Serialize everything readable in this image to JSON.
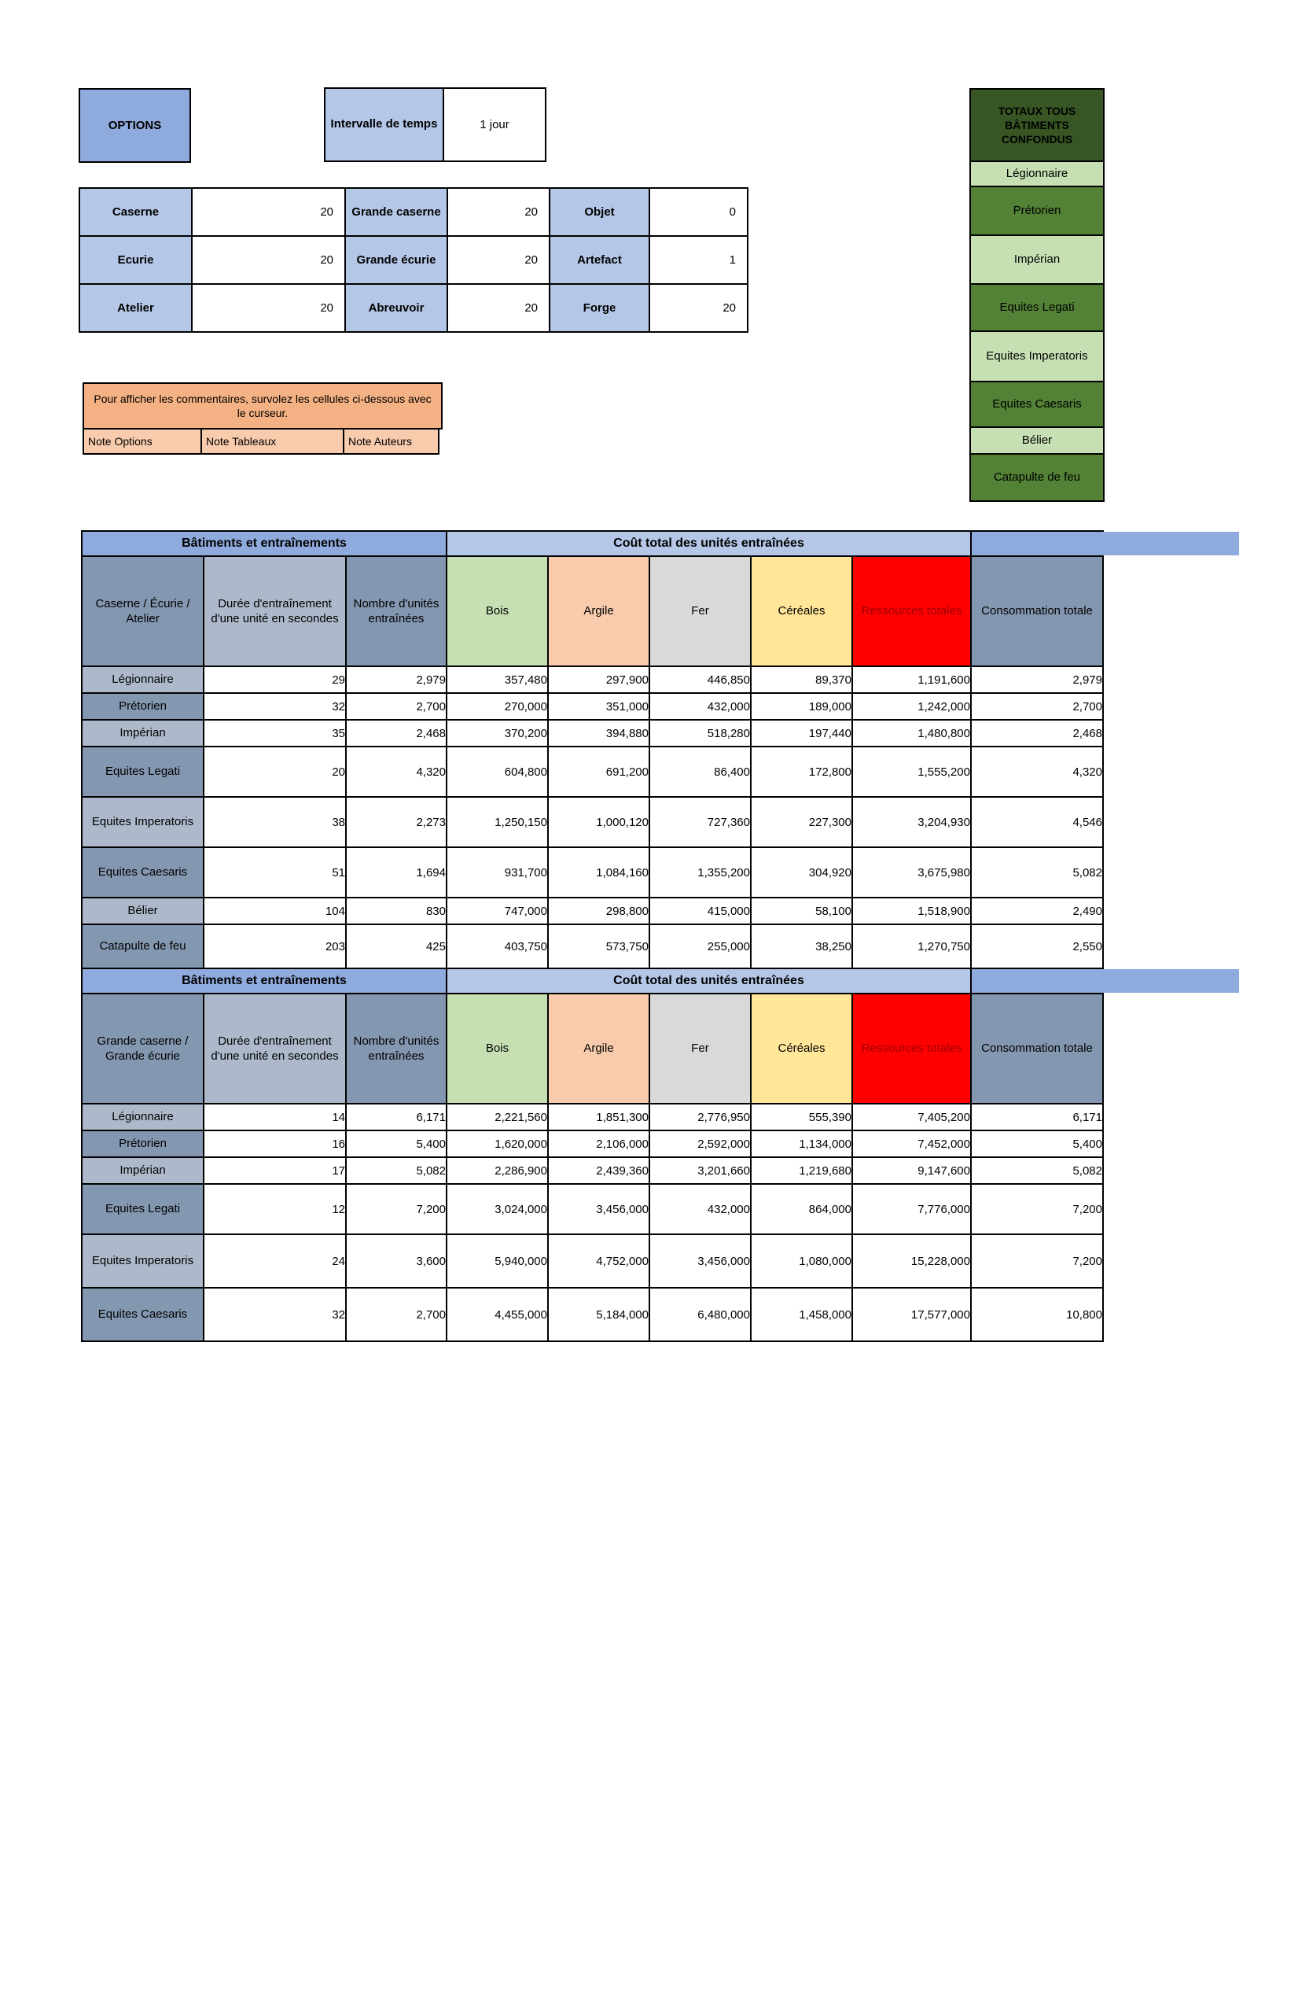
{
  "options_box": {
    "label": "OPTIONS"
  },
  "interval": {
    "label": "Intervalle de temps",
    "value": "1 jour"
  },
  "buildings_grid": {
    "rows": [
      {
        "c0": "Caserne",
        "c1": "20",
        "c2": "Grande caserne",
        "c3": "20",
        "c4": "Objet",
        "c5": "0"
      },
      {
        "c0": "Ecurie",
        "c1": "20",
        "c2": "Grande écurie",
        "c3": "20",
        "c4": "Artefact",
        "c5": "1"
      },
      {
        "c0": "Atelier",
        "c1": "20",
        "c2": "Abreuvoir",
        "c3": "20",
        "c4": "Forge",
        "c5": "20"
      }
    ]
  },
  "comment_box": {
    "hint": "Pour afficher les commentaires, survolez les cellules ci-dessous avec le curseur.",
    "notes": [
      "Note Options",
      "Note Tableaux",
      "Note Auteurs"
    ]
  },
  "totals_panel": {
    "title": "TOTAUX TOUS BÂTIMENTS CONFONDUS",
    "units": [
      "Légionnaire",
      "Prétorien",
      "Impérian",
      "Equites Legati",
      "Equites Imperatoris",
      "Equites Caesaris",
      "Bélier",
      "Catapulte de feu"
    ]
  },
  "colors": {
    "blue_medium": "#8FAADC",
    "blue_light": "#B4C7E7",
    "slate_dark": "#8497B0",
    "slate_light": "#ADB9CA",
    "green_dark": "#375623",
    "green_medium": "#538135",
    "green_light": "#C6E0B4",
    "orange_dark": "#F4B183",
    "orange_light": "#F8CBAD",
    "wood_green": "#C6E0B4",
    "clay_peach": "#F8CBAD",
    "iron_gray": "#D9D9D9",
    "crop_yellow": "#FFE699",
    "resources_red": "#FF0000"
  },
  "cost_tables": [
    {
      "left_header": "Bâtiments et entraînements",
      "right_header": "Coût total des unités entraînées",
      "col_headers": [
        "Caserne / Écurie / Atelier",
        "Durée d'entraînement d'une unité en secondes",
        "Nombre d'unités entraînées",
        "Bois",
        "Argile",
        "Fer",
        "Céréales",
        "Ressources totales",
        "Consommation totale"
      ],
      "rows": [
        {
          "label": "Légionnaire",
          "cells": [
            "29",
            "2,979",
            "357,480",
            "297,900",
            "446,850",
            "89,370",
            "1,191,600",
            "2,979"
          ]
        },
        {
          "label": "Prétorien",
          "cells": [
            "32",
            "2,700",
            "270,000",
            "351,000",
            "432,000",
            "189,000",
            "1,242,000",
            "2,700"
          ]
        },
        {
          "label": "Impérian",
          "cells": [
            "35",
            "2,468",
            "370,200",
            "394,880",
            "518,280",
            "197,440",
            "1,480,800",
            "2,468"
          ]
        },
        {
          "label": "Equites Legati",
          "cells": [
            "20",
            "4,320",
            "604,800",
            "691,200",
            "86,400",
            "172,800",
            "1,555,200",
            "4,320"
          ]
        },
        {
          "label": "Equites Imperatoris",
          "cells": [
            "38",
            "2,273",
            "1,250,150",
            "1,000,120",
            "727,360",
            "227,300",
            "3,204,930",
            "4,546"
          ]
        },
        {
          "label": "Equites Caesaris",
          "cells": [
            "51",
            "1,694",
            "931,700",
            "1,084,160",
            "1,355,200",
            "304,920",
            "3,675,980",
            "5,082"
          ]
        },
        {
          "label": "Bélier",
          "cells": [
            "104",
            "830",
            "747,000",
            "298,800",
            "415,000",
            "58,100",
            "1,518,900",
            "2,490"
          ]
        },
        {
          "label": "Catapulte de feu",
          "cells": [
            "203",
            "425",
            "403,750",
            "573,750",
            "255,000",
            "38,250",
            "1,270,750",
            "2,550"
          ]
        }
      ]
    },
    {
      "left_header": "Bâtiments et entraînements",
      "right_header": "Coût total des unités entraînées",
      "col_headers": [
        "Grande caserne / Grande écurie",
        "Durée d'entraînement d'une unité en secondes",
        "Nombre d'unités entraînées",
        "Bois",
        "Argile",
        "Fer",
        "Céréales",
        "Ressources totales",
        "Consommation totale"
      ],
      "rows": [
        {
          "label": "Légionnaire",
          "cells": [
            "14",
            "6,171",
            "2,221,560",
            "1,851,300",
            "2,776,950",
            "555,390",
            "7,405,200",
            "6,171"
          ]
        },
        {
          "label": "Prétorien",
          "cells": [
            "16",
            "5,400",
            "1,620,000",
            "2,106,000",
            "2,592,000",
            "1,134,000",
            "7,452,000",
            "5,400"
          ]
        },
        {
          "label": "Impérian",
          "cells": [
            "17",
            "5,082",
            "2,286,900",
            "2,439,360",
            "3,201,660",
            "1,219,680",
            "9,147,600",
            "5,082"
          ]
        },
        {
          "label": "Equites Legati",
          "cells": [
            "12",
            "7,200",
            "3,024,000",
            "3,456,000",
            "432,000",
            "864,000",
            "7,776,000",
            "7,200"
          ]
        },
        {
          "label": "Equites Imperatoris",
          "cells": [
            "24",
            "3,600",
            "5,940,000",
            "4,752,000",
            "3,456,000",
            "1,080,000",
            "15,228,000",
            "7,200"
          ]
        },
        {
          "label": "Equites Caesaris",
          "cells": [
            "32",
            "2,700",
            "4,455,000",
            "5,184,000",
            "6,480,000",
            "1,458,000",
            "17,577,000",
            "10,800"
          ]
        }
      ]
    }
  ]
}
